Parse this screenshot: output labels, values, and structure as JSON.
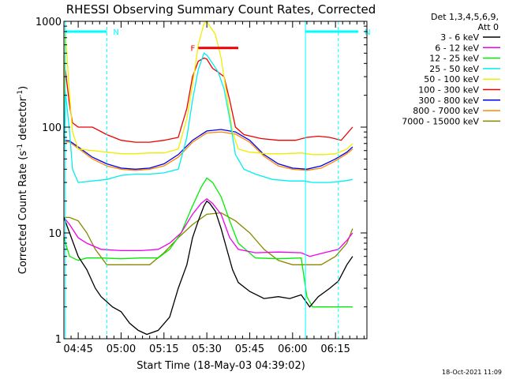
{
  "chart_data": {
    "type": "line",
    "title": "RHESSI Observing Summary Count Rates, Corrected",
    "xlabel": "Start Time (18-May-03 04:39:02)",
    "ylabel_main": "Corrected Count Rate (s",
    "ylabel_sup1": "-1",
    "ylabel_mid": " detector",
    "ylabel_sup2": "-1",
    "ylabel_end": ")",
    "yscale": "log",
    "ylim": [
      1,
      1000
    ],
    "xlim_minutes": [
      -5,
      101
    ],
    "x_ticks": [
      {
        "label": "04:45",
        "minute": 0
      },
      {
        "label": "05:00",
        "minute": 15
      },
      {
        "label": "05:15",
        "minute": 30
      },
      {
        "label": "05:30",
        "minute": 45
      },
      {
        "label": "05:45",
        "minute": 60
      },
      {
        "label": "06:00",
        "minute": 75
      },
      {
        "label": "06:15",
        "minute": 90
      }
    ],
    "y_ticks": [
      {
        "label": "1",
        "value": 1
      },
      {
        "label": "10",
        "value": 10
      },
      {
        "label": "100",
        "value": 100
      },
      {
        "label": "1000",
        "value": 1000
      }
    ],
    "legend_header": [
      "Det 1,3,4,5,6,9,",
      "Att 0"
    ],
    "legend_position": "right",
    "timestamp": "18-Oct-2021 11:09",
    "annotations": [
      {
        "label": "N",
        "start_min": -4.5,
        "end_min": 10,
        "value": 800,
        "color": "#00ffff"
      },
      {
        "label": "N",
        "start_min": 79.5,
        "end_min": 98,
        "value": 800,
        "color": "#00ffff"
      },
      {
        "label": "F",
        "start_min": 42,
        "end_min": 56,
        "value": 560,
        "color": "#ee0000"
      }
    ],
    "night_markers_minutes": [
      -4.5,
      10,
      79.5,
      91
    ],
    "series": [
      {
        "name": "3 - 6 keV",
        "color": "#000000",
        "points": [
          [
            -5,
            14
          ],
          [
            -3,
            10
          ],
          [
            0,
            6
          ],
          [
            3,
            4.5
          ],
          [
            6,
            3
          ],
          [
            8,
            2.5
          ],
          [
            12,
            2
          ],
          [
            15,
            1.8
          ],
          [
            18,
            1.4
          ],
          [
            21,
            1.2
          ],
          [
            24,
            1.1
          ],
          [
            28,
            1.2
          ],
          [
            32,
            1.6
          ],
          [
            35,
            3
          ],
          [
            38,
            5
          ],
          [
            40,
            9
          ],
          [
            42,
            13
          ],
          [
            44,
            18
          ],
          [
            45,
            20
          ],
          [
            46,
            19
          ],
          [
            48,
            16
          ],
          [
            50,
            11
          ],
          [
            52,
            7
          ],
          [
            54,
            4.5
          ],
          [
            56,
            3.4
          ],
          [
            60,
            2.8
          ],
          [
            65,
            2.4
          ],
          [
            70,
            2.5
          ],
          [
            74,
            2.4
          ],
          [
            78,
            2.6
          ],
          [
            81,
            2
          ],
          [
            84,
            2.5
          ],
          [
            88,
            3
          ],
          [
            91,
            3.5
          ],
          [
            94,
            5
          ],
          [
            96,
            6
          ]
        ]
      },
      {
        "name": "6 - 12 keV",
        "color": "#ee00ee",
        "points": [
          [
            -5,
            14
          ],
          [
            -3,
            12
          ],
          [
            0,
            9
          ],
          [
            3,
            8
          ],
          [
            8,
            7
          ],
          [
            15,
            6.8
          ],
          [
            22,
            6.8
          ],
          [
            28,
            7
          ],
          [
            32,
            8
          ],
          [
            36,
            10
          ],
          [
            40,
            15
          ],
          [
            43,
            19
          ],
          [
            45,
            21
          ],
          [
            47,
            19
          ],
          [
            50,
            15
          ],
          [
            53,
            9
          ],
          [
            56,
            7
          ],
          [
            62,
            6.5
          ],
          [
            70,
            6.6
          ],
          [
            78,
            6.5
          ],
          [
            81,
            6
          ],
          [
            86,
            6.5
          ],
          [
            91,
            7
          ],
          [
            94,
            8.5
          ],
          [
            96,
            10
          ]
        ]
      },
      {
        "name": "12 - 25 keV",
        "color": "#00ee00",
        "points": [
          [
            -5,
            9
          ],
          [
            -3,
            6
          ],
          [
            0,
            5.5
          ],
          [
            3,
            5.8
          ],
          [
            8,
            5.8
          ],
          [
            15,
            5.7
          ],
          [
            22,
            5.8
          ],
          [
            28,
            5.8
          ],
          [
            32,
            7
          ],
          [
            36,
            10
          ],
          [
            40,
            18
          ],
          [
            43,
            27
          ],
          [
            45,
            33
          ],
          [
            47,
            30
          ],
          [
            50,
            22
          ],
          [
            53,
            13
          ],
          [
            56,
            8
          ],
          [
            62,
            5.8
          ],
          [
            70,
            5.7
          ],
          [
            78,
            5.8
          ],
          [
            80,
            2.5
          ],
          [
            82,
            2
          ],
          [
            91,
            2
          ],
          [
            96,
            2
          ]
        ]
      },
      {
        "name": "25 - 50 keV",
        "color": "#00eeee",
        "points": [
          [
            -5,
            60
          ],
          [
            -4.5,
            220
          ],
          [
            -3,
            90
          ],
          [
            -2,
            40
          ],
          [
            0,
            30
          ],
          [
            5,
            31
          ],
          [
            10,
            32
          ],
          [
            15,
            35
          ],
          [
            20,
            36
          ],
          [
            25,
            36
          ],
          [
            30,
            37
          ],
          [
            35,
            40
          ],
          [
            38,
            80
          ],
          [
            40,
            180
          ],
          [
            42,
            350
          ],
          [
            44,
            500
          ],
          [
            45,
            480
          ],
          [
            47,
            400
          ],
          [
            49,
            330
          ],
          [
            51,
            230
          ],
          [
            53,
            120
          ],
          [
            55,
            55
          ],
          [
            58,
            40
          ],
          [
            62,
            36
          ],
          [
            68,
            32
          ],
          [
            74,
            31
          ],
          [
            79,
            31
          ],
          [
            82,
            30
          ],
          [
            88,
            30
          ],
          [
            93,
            31
          ],
          [
            96,
            32
          ]
        ]
      },
      {
        "name": "50 - 100 keV",
        "color": "#eeee00",
        "points": [
          [
            -5,
            70
          ],
          [
            -4.5,
            800
          ],
          [
            -3,
            200
          ],
          [
            -2,
            90
          ],
          [
            0,
            62
          ],
          [
            5,
            60
          ],
          [
            10,
            58
          ],
          [
            15,
            56
          ],
          [
            20,
            56
          ],
          [
            25,
            57
          ],
          [
            30,
            57
          ],
          [
            35,
            62
          ],
          [
            38,
            120
          ],
          [
            40,
            250
          ],
          [
            42,
            600
          ],
          [
            44,
            950
          ],
          [
            45,
            1000
          ],
          [
            46,
            900
          ],
          [
            48,
            750
          ],
          [
            50,
            450
          ],
          [
            52,
            200
          ],
          [
            54,
            90
          ],
          [
            56,
            62
          ],
          [
            60,
            58
          ],
          [
            66,
            56
          ],
          [
            72,
            56
          ],
          [
            78,
            57
          ],
          [
            82,
            55
          ],
          [
            86,
            55
          ],
          [
            90,
            56
          ],
          [
            94,
            62
          ],
          [
            96,
            70
          ]
        ]
      },
      {
        "name": "100 - 300 keV",
        "color": "#ee0000",
        "points": [
          [
            -5,
            80
          ],
          [
            -4.5,
            350
          ],
          [
            -3,
            160
          ],
          [
            -2,
            110
          ],
          [
            0,
            100
          ],
          [
            5,
            100
          ],
          [
            10,
            85
          ],
          [
            15,
            75
          ],
          [
            20,
            72
          ],
          [
            25,
            72
          ],
          [
            30,
            75
          ],
          [
            35,
            80
          ],
          [
            38,
            150
          ],
          [
            40,
            300
          ],
          [
            42,
            420
          ],
          [
            44,
            450
          ],
          [
            45,
            440
          ],
          [
            47,
            360
          ],
          [
            49,
            330
          ],
          [
            51,
            300
          ],
          [
            53,
            180
          ],
          [
            55,
            100
          ],
          [
            58,
            85
          ],
          [
            64,
            78
          ],
          [
            70,
            75
          ],
          [
            76,
            75
          ],
          [
            80,
            80
          ],
          [
            84,
            82
          ],
          [
            88,
            80
          ],
          [
            92,
            75
          ],
          [
            96,
            100
          ]
        ]
      },
      {
        "name": "300 - 800 keV",
        "color": "#0000ee",
        "points": [
          [
            -5,
            75
          ],
          [
            -3,
            74
          ],
          [
            0,
            65
          ],
          [
            5,
            52
          ],
          [
            10,
            45
          ],
          [
            15,
            41
          ],
          [
            20,
            40
          ],
          [
            25,
            41
          ],
          [
            30,
            45
          ],
          [
            35,
            55
          ],
          [
            40,
            75
          ],
          [
            45,
            92
          ],
          [
            50,
            95
          ],
          [
            55,
            90
          ],
          [
            60,
            75
          ],
          [
            65,
            55
          ],
          [
            70,
            45
          ],
          [
            75,
            41
          ],
          [
            80,
            40
          ],
          [
            85,
            43
          ],
          [
            90,
            50
          ],
          [
            94,
            58
          ],
          [
            96,
            65
          ]
        ]
      },
      {
        "name": "800 - 7000 keV",
        "color": "#ff8800",
        "points": [
          [
            -5,
            73
          ],
          [
            -3,
            72
          ],
          [
            0,
            63
          ],
          [
            5,
            50
          ],
          [
            10,
            43
          ],
          [
            15,
            40
          ],
          [
            20,
            39
          ],
          [
            25,
            40
          ],
          [
            30,
            43
          ],
          [
            35,
            52
          ],
          [
            40,
            72
          ],
          [
            45,
            88
          ],
          [
            50,
            90
          ],
          [
            55,
            86
          ],
          [
            60,
            72
          ],
          [
            65,
            53
          ],
          [
            70,
            43
          ],
          [
            75,
            40
          ],
          [
            80,
            39
          ],
          [
            85,
            41
          ],
          [
            90,
            48
          ],
          [
            94,
            56
          ],
          [
            96,
            62
          ]
        ]
      },
      {
        "name": "7000 - 15000 keV",
        "color": "#888800",
        "points": [
          [
            -5,
            14
          ],
          [
            -3,
            14
          ],
          [
            0,
            13
          ],
          [
            3,
            10
          ],
          [
            6,
            7
          ],
          [
            10,
            5
          ],
          [
            15,
            5
          ],
          [
            20,
            5
          ],
          [
            25,
            5
          ],
          [
            30,
            6.5
          ],
          [
            35,
            9
          ],
          [
            40,
            12
          ],
          [
            45,
            15
          ],
          [
            50,
            15.5
          ],
          [
            55,
            13
          ],
          [
            60,
            10
          ],
          [
            65,
            7
          ],
          [
            70,
            5.5
          ],
          [
            75,
            5
          ],
          [
            80,
            5
          ],
          [
            85,
            5
          ],
          [
            90,
            6
          ],
          [
            94,
            8
          ],
          [
            96,
            11
          ]
        ]
      }
    ]
  }
}
